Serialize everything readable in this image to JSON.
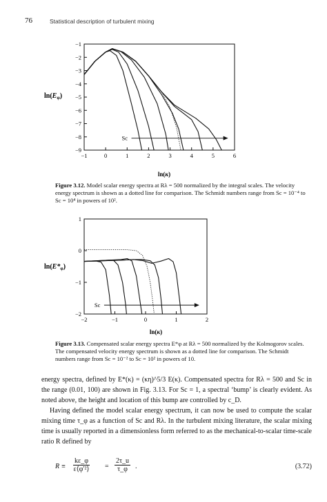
{
  "header": {
    "page_number": "76",
    "running_title": "Statistical description of turbulent mixing"
  },
  "figure1": {
    "caption_label": "Figure 3.12.",
    "caption_text": " Model scalar energy spectra at Rλ = 500 normalized by the integral scales. The velocity energy spectrum is shown as a dotted line for comparison. The Schmidt numbers range from Sc = 10⁻⁴ to Sc = 10⁴ in powers of 10².",
    "chart_data": {
      "type": "line",
      "ylabel": "ln(E_φ)",
      "xlabel": "ln(κ)",
      "xlim": [
        -1,
        6
      ],
      "ylim": [
        -9,
        -1
      ],
      "xticks": [
        "−1",
        "0",
        "1",
        "2",
        "3",
        "4",
        "5",
        "6"
      ],
      "yticks": [
        "−1",
        "−2",
        "−3",
        "−4",
        "−5",
        "−6",
        "−7",
        "−8",
        "−9"
      ],
      "annotation": "Sc",
      "series": [
        {
          "x": [
            -1,
            -0.5,
            0,
            0.2,
            0.5,
            0.8,
            1.2,
            1.5,
            1.68
          ],
          "y": [
            -3.3,
            -2.3,
            -1.6,
            -1.5,
            -1.85,
            -3.0,
            -5.5,
            -7.5,
            -9
          ]
        },
        {
          "x": [
            -1,
            -0.5,
            0,
            0.3,
            0.6,
            1.0,
            1.5,
            2.0,
            2.25
          ],
          "y": [
            -3.3,
            -2.3,
            -1.6,
            -1.4,
            -1.6,
            -2.5,
            -4.5,
            -7.2,
            -9
          ]
        },
        {
          "x": [
            -1,
            -0.5,
            0,
            0.3,
            0.7,
            1.2,
            1.8,
            2.4,
            2.8,
            2.92
          ],
          "y": [
            -3.3,
            -2.3,
            -1.6,
            -1.35,
            -1.55,
            -2.2,
            -3.5,
            -5.5,
            -7.8,
            -9
          ]
        },
        {
          "x": [
            -1,
            -0.5,
            0,
            0.3,
            0.8,
            1.4,
            2.0,
            2.6,
            3.1,
            3.4,
            3.62
          ],
          "y": [
            -3.3,
            -2.3,
            -1.6,
            -1.35,
            -1.6,
            -2.3,
            -3.4,
            -4.8,
            -6.2,
            -7.4,
            -9
          ]
        },
        {
          "x": [
            -1,
            -0.5,
            0,
            0.3,
            0.8,
            1.4,
            2.0,
            2.6,
            3.2,
            3.6,
            4.0,
            4.3,
            4.5
          ],
          "y": [
            -3.3,
            -2.3,
            -1.6,
            -1.35,
            -1.6,
            -2.3,
            -3.4,
            -4.6,
            -5.7,
            -6.2,
            -6.7,
            -7.6,
            -9
          ]
        },
        {
          "x": [
            -1,
            -0.5,
            0,
            0.3,
            0.8,
            1.4,
            2.0,
            2.6,
            3.2,
            3.7,
            4.2,
            4.8,
            5.15,
            5.4
          ],
          "y": [
            -3.3,
            -2.3,
            -1.6,
            -1.35,
            -1.6,
            -2.3,
            -3.4,
            -4.6,
            -5.6,
            -6.1,
            -6.6,
            -7.4,
            -8.2,
            -9
          ]
        }
      ],
      "dotted_series": {
        "x": [
          -1,
          -0.5,
          0,
          0.3,
          0.8,
          1.4,
          2.0,
          2.6,
          3.0,
          3.3,
          3.5
        ],
        "y": [
          -3.3,
          -2.3,
          -1.6,
          -1.35,
          -1.6,
          -2.3,
          -3.4,
          -4.6,
          -5.8,
          -7.3,
          -9
        ]
      },
      "arrow": {
        "from": [
          1.2,
          -8.1
        ],
        "to": [
          5.7,
          -8.1
        ]
      }
    }
  },
  "figure2": {
    "caption_label": "Figure 3.13.",
    "caption_text": " Compensated scalar energy spectra E*φ at Rλ = 500 normalized by the Kolmogorov scales. The compensated velocity energy spectrum is shown as a dotted line for comparison. The Schmidt numbers range from Sc = 10⁻² to Sc = 10² in powers of 10.",
    "chart_data": {
      "type": "line",
      "ylabel": "ln(E*_φ)",
      "xlabel": "ln(κ)",
      "xlim": [
        -2,
        2
      ],
      "ylim": [
        -2,
        1
      ],
      "xticks": [
        "−2",
        "−1",
        "0",
        "1",
        "2"
      ],
      "yticks": [
        "1",
        "0",
        "−1",
        "−2"
      ],
      "annotation": "Sc",
      "series": [
        {
          "x": [
            -2,
            -1.8,
            -1.6,
            -1.45,
            -1.3,
            -1.18,
            -1.12
          ],
          "y": [
            -0.34,
            -0.33,
            -0.33,
            -0.36,
            -0.6,
            -1.4,
            -2.0
          ]
        },
        {
          "x": [
            -2,
            -1.6,
            -1.2,
            -1.05,
            -0.9,
            -0.75,
            -0.65,
            -0.62
          ],
          "y": [
            -0.34,
            -0.32,
            -0.3,
            -0.3,
            -0.45,
            -1.0,
            -1.7,
            -2.0
          ]
        },
        {
          "x": [
            -2,
            -1.6,
            -1.2,
            -0.8,
            -0.6,
            -0.45,
            -0.3,
            -0.18,
            -0.12
          ],
          "y": [
            -0.34,
            -0.32,
            -0.3,
            -0.28,
            -0.25,
            -0.32,
            -0.8,
            -1.6,
            -2.0
          ]
        },
        {
          "x": [
            -2,
            -1.4,
            -0.8,
            -0.4,
            -0.1,
            0.15,
            0.3,
            0.42,
            0.5,
            0.55
          ],
          "y": [
            -0.34,
            -0.32,
            -0.3,
            -0.28,
            -0.28,
            -0.32,
            -0.45,
            -0.85,
            -1.5,
            -2.0
          ]
        },
        {
          "x": [
            -2,
            -1.4,
            -0.8,
            -0.4,
            -0.1,
            0.2,
            0.5,
            0.75,
            0.9,
            1.0,
            1.1,
            1.16
          ],
          "y": [
            -0.34,
            -0.32,
            -0.3,
            -0.28,
            -0.31,
            -0.4,
            -0.33,
            -0.25,
            -0.35,
            -0.7,
            -1.5,
            -2.0
          ]
        }
      ],
      "dotted_series": {
        "x": [
          -2,
          -1.5,
          -1.0,
          -0.6,
          -0.3,
          -0.1,
          0.05,
          0.15,
          0.22,
          0.28
        ],
        "y": [
          0.03,
          0.03,
          0.03,
          0.03,
          0.0,
          -0.15,
          -0.5,
          -1.0,
          -1.5,
          -2.0
        ]
      },
      "arrow": {
        "from": [
          -1.35,
          -1.72
        ],
        "to": [
          1.75,
          -1.72
        ]
      }
    }
  },
  "body": {
    "p1": "energy spectra, defined by E*(κ) = (κη)^5/3 E(κ). Compensated spectra for Rλ = 500 and Sc in the range (0.01, 100) are shown in Fig. 3.13. For Sc = 1, a spectral ‘bump’ is clearly evident. As noted above, the height and location of this bump are controlled by c_D.",
    "p2": "Having defined the model scalar energy spectrum, it can now be used to compute the scalar mixing time τ_φ as a function of Sc and Rλ. In the turbulent mixing literature, the scalar mixing time is usually reported in a dimensionless form referred to as the mechanical-to-scalar time-scale ratio R defined by"
  },
  "equation": {
    "lhs": "R ≡",
    "num1": "kε_φ",
    "den1": "ε⟨φ′²⟩",
    "eq": "=",
    "num2": "2τ_u",
    "den2": "τ_φ",
    "period": ".",
    "number": "(3.72)"
  }
}
